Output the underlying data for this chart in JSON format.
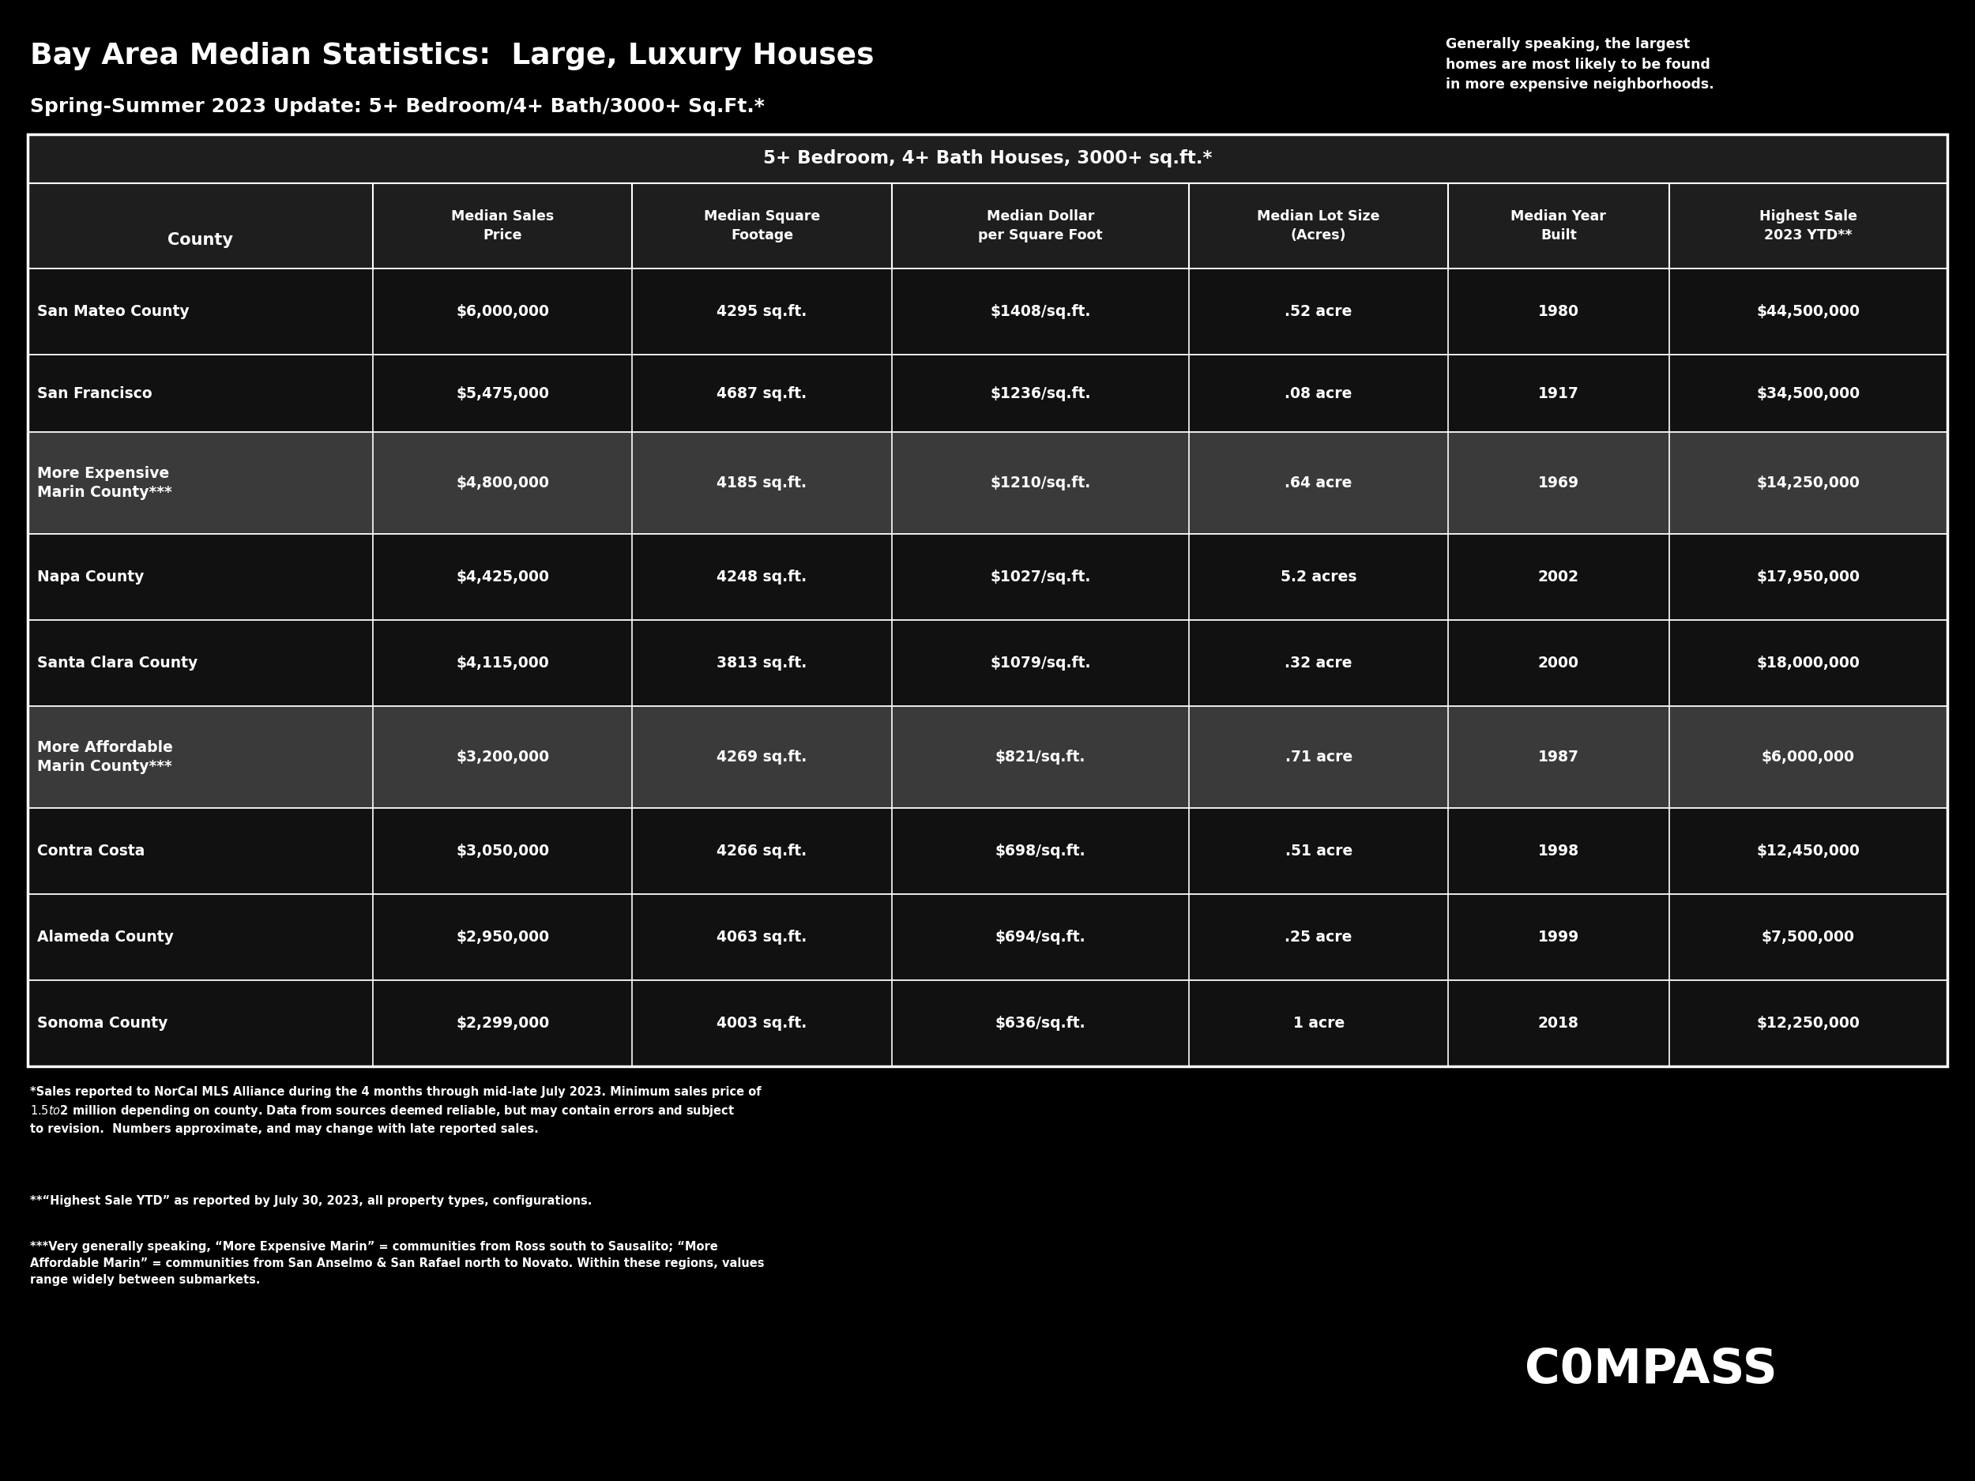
{
  "bg_color": "#000000",
  "title_line1": "Bay Area Median Statistics:  Large, Luxury Houses",
  "title_line2": "Spring-Summer 2023 Update: 5+ Bedroom/4+ Bath/3000+ Sq.Ft.*",
  "sidebar_text": "Generally speaking, the largest\nhomes are most likely to be found\nin more expensive neighborhoods.",
  "table_header_main": "5+ Bedroom, 4+ Bath Houses, 3000+ sq.ft.*",
  "col_headers": [
    "County",
    "Median Sales\nPrice",
    "Median Square\nFootage",
    "Median Dollar\nper Square Foot",
    "Median Lot Size\n(Acres)",
    "Median Year\nBuilt",
    "Highest Sale\n2023 YTD**"
  ],
  "rows": [
    [
      "San Mateo County",
      "$6,000,000",
      "4295 sq.ft.",
      "$1408/sq.ft.",
      ".52 acre",
      "1980",
      "$44,500,000"
    ],
    [
      "San Francisco",
      "$5,475,000",
      "4687 sq.ft.",
      "$1236/sq.ft.",
      ".08 acre",
      "1917",
      "$34,500,000"
    ],
    [
      "More Expensive\nMarin County***",
      "$4,800,000",
      "4185 sq.ft.",
      "$1210/sq.ft.",
      ".64 acre",
      "1969",
      "$14,250,000"
    ],
    [
      "Napa County",
      "$4,425,000",
      "4248 sq.ft.",
      "$1027/sq.ft.",
      "5.2 acres",
      "2002",
      "$17,950,000"
    ],
    [
      "Santa Clara County",
      "$4,115,000",
      "3813 sq.ft.",
      "$1079/sq.ft.",
      ".32 acre",
      "2000",
      "$18,000,000"
    ],
    [
      "More Affordable\nMarin County***",
      "$3,200,000",
      "4269 sq.ft.",
      "$821/sq.ft.",
      ".71 acre",
      "1987",
      "$6,000,000"
    ],
    [
      "Contra Costa",
      "$3,050,000",
      "4266 sq.ft.",
      "$698/sq.ft.",
      ".51 acre",
      "1998",
      "$12,450,000"
    ],
    [
      "Alameda County",
      "$2,950,000",
      "4063 sq.ft.",
      "$694/sq.ft.",
      ".25 acre",
      "1999",
      "$7,500,000"
    ],
    [
      "Sonoma County",
      "$2,299,000",
      "4003 sq.ft.",
      "$636/sq.ft.",
      "1 acre",
      "2018",
      "$12,250,000"
    ]
  ],
  "row_bg_colors": [
    "#111111",
    "#111111",
    "#3a3a3a",
    "#111111",
    "#111111",
    "#3a3a3a",
    "#111111",
    "#111111",
    "#111111"
  ],
  "footnote1": "*Sales reported to NorCal MLS Alliance during the 4 months through mid-late July 2023. Minimum sales price of\n$1.5 to $2 million depending on county. Data from sources deemed reliable, but may contain errors and subject\nto revision.  Numbers approximate, and may change with late reported sales.",
  "footnote2": "**“Highest Sale YTD” as reported by July 30, 2023, all property types, configurations.",
  "footnote3": "***Very generally speaking, “More Expensive Marin” = communities from Ross south to Sausalito; “More\nAffordable Marin” = communities from San Anselmo & San Rafael north to Novato. Within these regions, values\nrange widely between submarkets.",
  "compass_text": "C0MPASS",
  "text_color": "#ffffff",
  "table_border_color": "#ffffff",
  "header_bg_color": "#1e1e1e"
}
